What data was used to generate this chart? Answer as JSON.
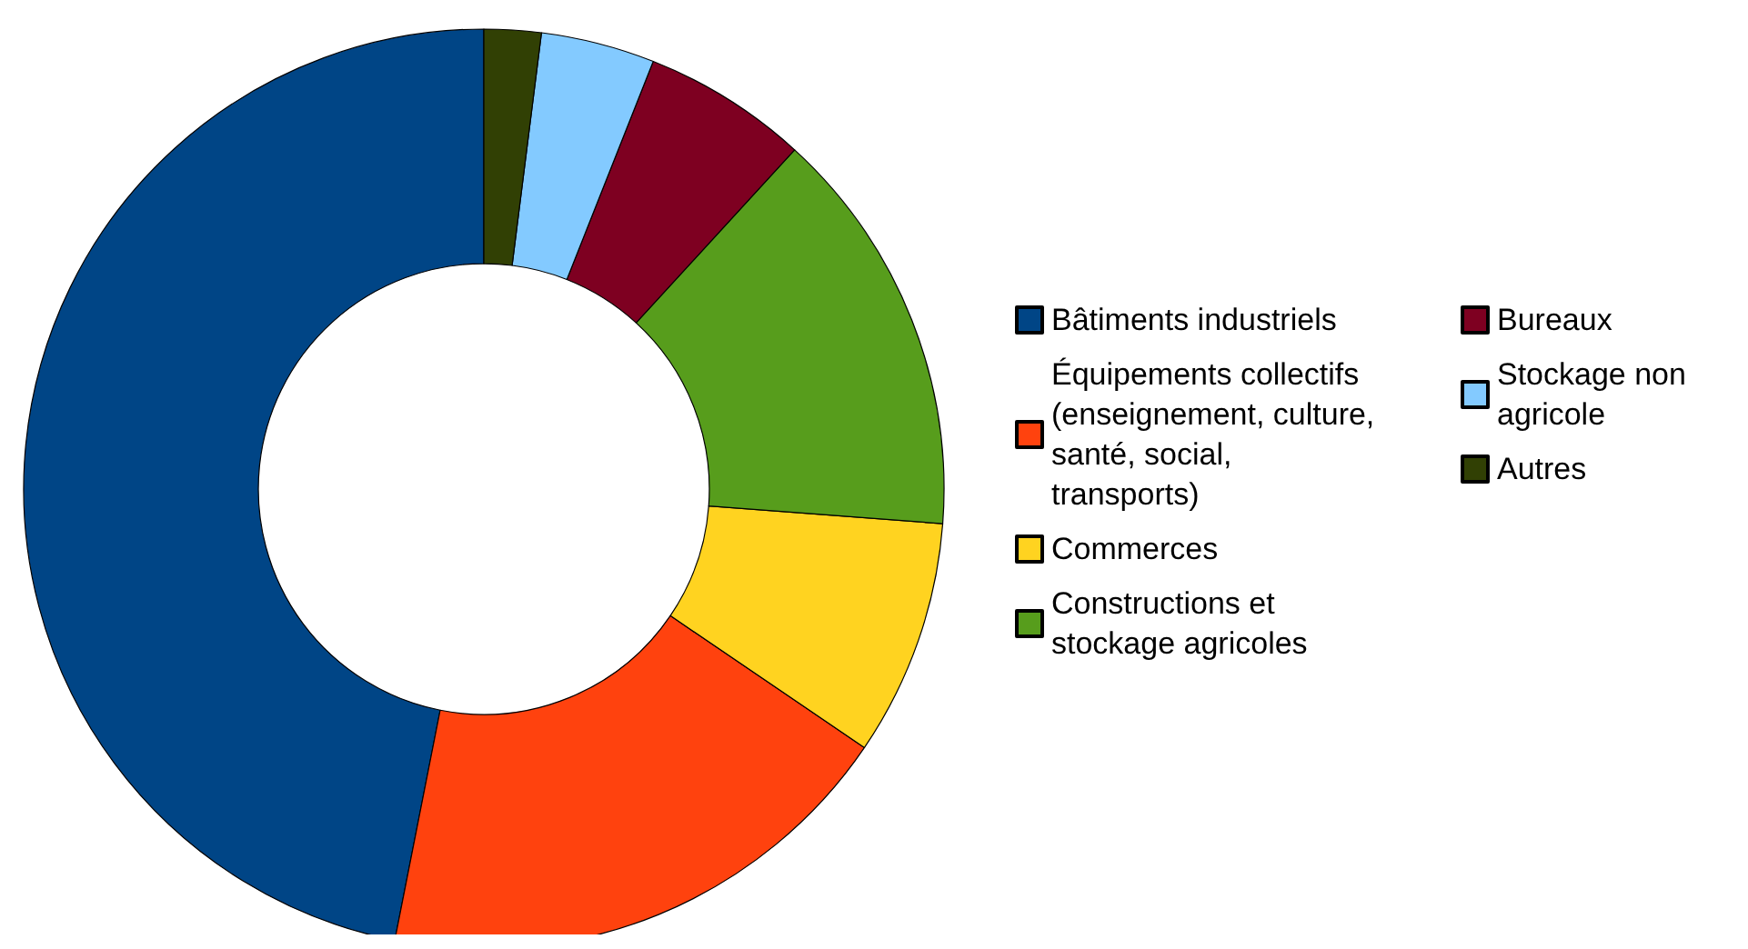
{
  "chart_data": {
    "type": "donut",
    "categories": [
      "Bâtiments industriels",
      "Équipements collectifs (enseignement, culture, santé, social, transports)",
      "Commerces",
      "Constructions et stockage agricoles",
      "Bureaux",
      "Stockage non agricole",
      "Autres"
    ],
    "values": [
      46.9,
      18.6,
      8.3,
      14.4,
      5.8,
      4.0,
      2.0
    ],
    "colors": [
      "#004586",
      "#ff420e",
      "#ffd320",
      "#579d1c",
      "#7e0021",
      "#83caff",
      "#314004"
    ],
    "legend": "right"
  }
}
